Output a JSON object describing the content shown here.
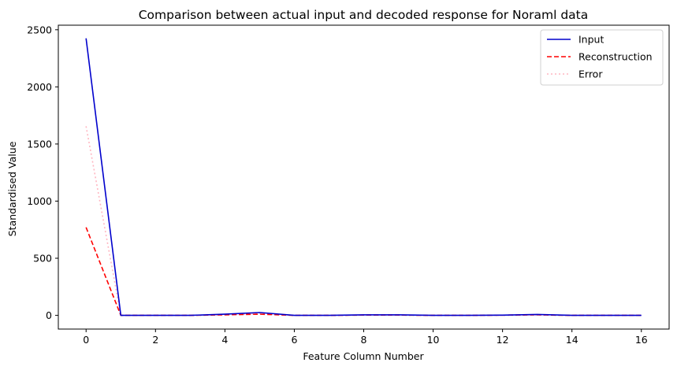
{
  "chart_data": {
    "type": "line",
    "title": "Comparison between actual input and decoded response for Noraml data",
    "xlabel": "Feature Column Number",
    "ylabel": "Standardised Value",
    "xlim": [
      -0.8,
      16.8
    ],
    "ylim": [
      -120,
      2540
    ],
    "xticks": [
      0,
      2,
      4,
      6,
      8,
      10,
      12,
      14,
      16
    ],
    "yticks": [
      0,
      500,
      1000,
      1500,
      2000,
      2500
    ],
    "grid": false,
    "legend_position": "top-right",
    "x": [
      0,
      1,
      2,
      3,
      4,
      5,
      6,
      7,
      8,
      9,
      10,
      11,
      12,
      13,
      14,
      15,
      16
    ],
    "series": [
      {
        "name": "Input",
        "color": "#0000cc",
        "style": "solid",
        "values": [
          2425,
          0,
          0,
          0,
          10,
          25,
          0,
          0,
          5,
          5,
          0,
          0,
          2,
          8,
          0,
          0,
          0
        ]
      },
      {
        "name": "Reconstruction",
        "color": "#ff0000",
        "style": "dashed",
        "values": [
          770,
          0,
          0,
          0,
          5,
          10,
          0,
          0,
          3,
          3,
          0,
          0,
          2,
          5,
          0,
          0,
          0
        ]
      },
      {
        "name": "Error",
        "color": "#ffb6c1",
        "style": "dotted",
        "values": [
          1655,
          0,
          0,
          0,
          5,
          15,
          0,
          0,
          2,
          2,
          0,
          0,
          0,
          3,
          0,
          0,
          0
        ]
      }
    ]
  }
}
